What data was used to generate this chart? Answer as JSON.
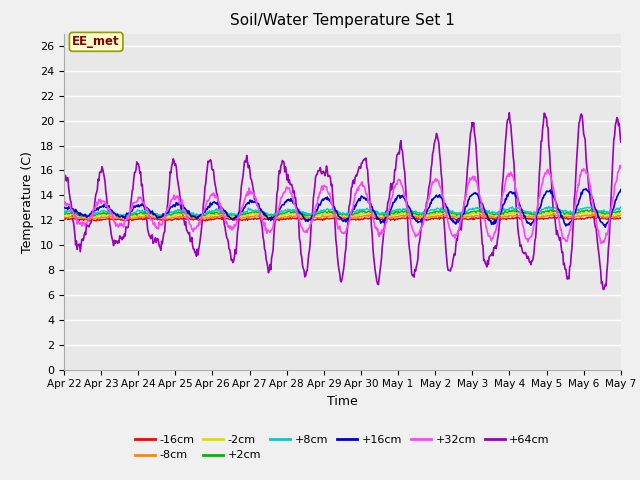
{
  "title": "Soil/Water Temperature Set 1",
  "xlabel": "Time",
  "ylabel": "Temperature (C)",
  "ylim": [
    0,
    27
  ],
  "yticks": [
    0,
    2,
    4,
    6,
    8,
    10,
    12,
    14,
    16,
    18,
    20,
    22,
    24,
    26
  ],
  "bg_color": "#f0f0f0",
  "plot_bg_color": "#e8e8e8",
  "annotation_text": "EE_met",
  "annotation_bg": "#ffffcc",
  "annotation_border": "#999900",
  "annotation_fg": "#880000",
  "series_colors": {
    "-16cm": "#ff0000",
    "-8cm": "#ff8800",
    "-2cm": "#dddd00",
    "+2cm": "#00bb00",
    "+8cm": "#00cccc",
    "+16cm": "#0000cc",
    "+32cm": "#ff44ff",
    "+64cm": "#9900bb"
  },
  "x_labels": [
    "Apr 22",
    "Apr 23",
    "Apr 24",
    "Apr 25",
    "Apr 26",
    "Apr 27",
    "Apr 28",
    "Apr 29",
    "Apr 30",
    "May 1",
    "May 2",
    "May 3",
    "May 4",
    "May 5",
    "May 6",
    "May 7"
  ]
}
